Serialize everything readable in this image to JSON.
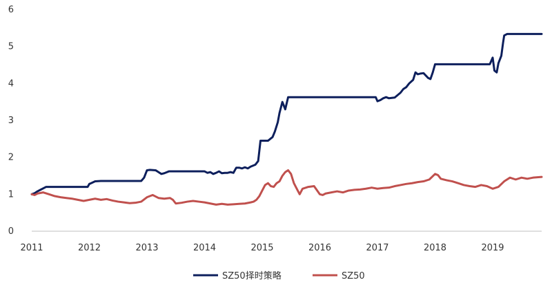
{
  "chart_data": {
    "type": "line",
    "title": "",
    "xlabel": "",
    "ylabel": "",
    "xlim": [
      2011.0,
      2019.85
    ],
    "ylim": [
      0,
      6
    ],
    "y_ticks": [
      0,
      1,
      2,
      3,
      4,
      5,
      6
    ],
    "x_ticks": [
      2011,
      2012,
      2013,
      2014,
      2015,
      2016,
      2017,
      2018,
      2019
    ],
    "grid": false,
    "legend_position": "bottom-center",
    "series": [
      {
        "name": "SZ50择时策略",
        "color": "#0d1f5c",
        "x": [
          2011.0,
          2011.05,
          2011.1,
          2011.15,
          2011.25,
          2011.35,
          2011.5,
          2011.9,
          2011.97,
          2012.0,
          2012.03,
          2012.1,
          2012.2,
          2012.5,
          2012.9,
          2012.95,
          2013.0,
          2013.05,
          2013.15,
          2013.2,
          2013.25,
          2013.3,
          2013.38,
          2013.45,
          2013.6,
          2013.8,
          2014.0,
          2014.05,
          2014.1,
          2014.15,
          2014.2,
          2014.25,
          2014.3,
          2014.35,
          2014.4,
          2014.45,
          2014.5,
          2014.55,
          2014.6,
          2014.65,
          2014.7,
          2014.75,
          2014.8,
          2014.88,
          2014.93,
          2014.97,
          2015.0,
          2015.1,
          2015.18,
          2015.22,
          2015.27,
          2015.3,
          2015.35,
          2015.4,
          2015.45,
          2015.55,
          2016.0,
          2016.5,
          2016.97,
          2017.0,
          2017.05,
          2017.1,
          2017.15,
          2017.2,
          2017.3,
          2017.4,
          2017.45,
          2017.5,
          2017.55,
          2017.62,
          2017.66,
          2017.7,
          2017.75,
          2017.8,
          2017.88,
          2017.92,
          2017.96,
          2018.0,
          2018.05,
          2018.5,
          2018.95,
          2019.0,
          2019.03,
          2019.07,
          2019.1,
          2019.15,
          2019.18,
          2019.2,
          2019.25,
          2019.5,
          2019.85
        ],
        "values": [
          1.0,
          1.03,
          1.08,
          1.12,
          1.2,
          1.2,
          1.2,
          1.2,
          1.2,
          1.28,
          1.3,
          1.35,
          1.36,
          1.36,
          1.36,
          1.45,
          1.65,
          1.66,
          1.65,
          1.6,
          1.55,
          1.57,
          1.62,
          1.62,
          1.62,
          1.62,
          1.62,
          1.58,
          1.6,
          1.55,
          1.58,
          1.62,
          1.57,
          1.58,
          1.58,
          1.6,
          1.58,
          1.72,
          1.72,
          1.7,
          1.73,
          1.7,
          1.75,
          1.8,
          1.9,
          2.45,
          2.45,
          2.45,
          2.55,
          2.7,
          2.95,
          3.2,
          3.5,
          3.3,
          3.63,
          3.63,
          3.63,
          3.63,
          3.63,
          3.52,
          3.55,
          3.6,
          3.63,
          3.6,
          3.62,
          3.75,
          3.85,
          3.9,
          4.0,
          4.1,
          4.3,
          4.25,
          4.27,
          4.28,
          4.15,
          4.12,
          4.3,
          4.52,
          4.52,
          4.52,
          4.52,
          4.7,
          4.35,
          4.3,
          4.55,
          4.75,
          5.1,
          5.3,
          5.34,
          5.34,
          5.34
        ]
      },
      {
        "name": "SZ50",
        "color": "#c0504d",
        "x": [
          2011.0,
          2011.05,
          2011.1,
          2011.2,
          2011.3,
          2011.4,
          2011.5,
          2011.6,
          2011.7,
          2011.8,
          2011.9,
          2012.0,
          2012.1,
          2012.2,
          2012.3,
          2012.4,
          2012.5,
          2012.6,
          2012.7,
          2012.8,
          2012.9,
          2013.0,
          2013.1,
          2013.2,
          2013.3,
          2013.4,
          2013.45,
          2013.5,
          2013.6,
          2013.7,
          2013.8,
          2013.9,
          2014.0,
          2014.1,
          2014.2,
          2014.3,
          2014.4,
          2014.5,
          2014.6,
          2014.7,
          2014.8,
          2014.85,
          2014.9,
          2014.95,
          2015.0,
          2015.05,
          2015.1,
          2015.15,
          2015.2,
          2015.25,
          2015.3,
          2015.35,
          2015.4,
          2015.45,
          2015.5,
          2015.55,
          2015.6,
          2015.65,
          2015.7,
          2015.8,
          2015.9,
          2016.0,
          2016.05,
          2016.1,
          2016.2,
          2016.3,
          2016.4,
          2016.5,
          2016.6,
          2016.7,
          2016.8,
          2016.9,
          2017.0,
          2017.1,
          2017.2,
          2017.3,
          2017.4,
          2017.5,
          2017.6,
          2017.7,
          2017.8,
          2017.9,
          2018.0,
          2018.05,
          2018.1,
          2018.2,
          2018.3,
          2018.4,
          2018.5,
          2018.6,
          2018.7,
          2018.8,
          2018.9,
          2019.0,
          2019.1,
          2019.2,
          2019.3,
          2019.4,
          2019.5,
          2019.6,
          2019.7,
          2019.85
        ],
        "values": [
          1.0,
          0.98,
          1.02,
          1.05,
          1.0,
          0.95,
          0.92,
          0.9,
          0.88,
          0.85,
          0.82,
          0.85,
          0.88,
          0.85,
          0.87,
          0.83,
          0.8,
          0.78,
          0.76,
          0.77,
          0.8,
          0.92,
          0.98,
          0.9,
          0.88,
          0.9,
          0.85,
          0.75,
          0.77,
          0.8,
          0.82,
          0.8,
          0.78,
          0.75,
          0.72,
          0.74,
          0.72,
          0.73,
          0.74,
          0.75,
          0.78,
          0.8,
          0.85,
          0.95,
          1.1,
          1.25,
          1.3,
          1.22,
          1.2,
          1.3,
          1.35,
          1.5,
          1.6,
          1.65,
          1.55,
          1.3,
          1.15,
          1.0,
          1.15,
          1.2,
          1.22,
          1.0,
          0.98,
          1.02,
          1.05,
          1.08,
          1.05,
          1.1,
          1.12,
          1.13,
          1.15,
          1.18,
          1.15,
          1.17,
          1.18,
          1.22,
          1.25,
          1.28,
          1.3,
          1.33,
          1.35,
          1.4,
          1.55,
          1.52,
          1.42,
          1.38,
          1.35,
          1.3,
          1.25,
          1.22,
          1.2,
          1.25,
          1.22,
          1.15,
          1.2,
          1.35,
          1.45,
          1.4,
          1.45,
          1.42,
          1.45,
          1.47
        ]
      }
    ]
  }
}
